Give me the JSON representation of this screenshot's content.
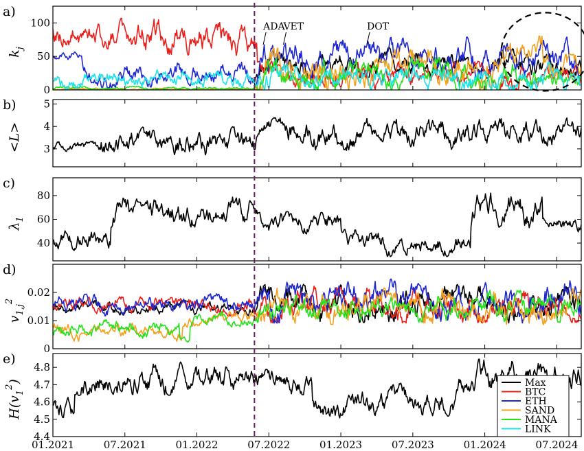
{
  "chart_data": [
    {
      "panel": "a)",
      "type": "line",
      "ylabel": "k_j",
      "ylabel_main": "k",
      "ylabel_sub": "j",
      "ylim": [
        0,
        125
      ],
      "yticks": [
        "0",
        "50",
        "100"
      ],
      "ytick_values": [
        0,
        50,
        100
      ],
      "annotations": [
        "ADA",
        "VET",
        "DOT"
      ],
      "annotation_times": [
        2022.48,
        2022.62,
        2023.2
      ],
      "highlight_ellipse": {
        "x_center": 2024.42,
        "y_center": 57
      },
      "series": [
        {
          "name": "Max",
          "color": "#000000",
          "segments": [
            [
              2021.0,
              2022.4,
              0,
              0
            ],
            [
              2022.4,
              2024.67,
              20,
              60
            ]
          ]
        },
        {
          "name": "BTC",
          "color": "#e8201b",
          "segments": [
            [
              2021.0,
              2021.55,
              60,
              105
            ],
            [
              2021.55,
              2022.42,
              55,
              110
            ],
            [
              2022.42,
              2024.67,
              0,
              40
            ]
          ]
        },
        {
          "name": "ETH",
          "color": "#1f27cf",
          "segments": [
            [
              2021.0,
              2021.2,
              45,
              60
            ],
            [
              2021.2,
              2022.42,
              5,
              40
            ],
            [
              2022.42,
              2024.67,
              20,
              75
            ]
          ]
        },
        {
          "name": "SAND",
          "color": "#f2a21e",
          "segments": [
            [
              2021.0,
              2022.42,
              0,
              3
            ],
            [
              2022.42,
              2024.1,
              0,
              60
            ],
            [
              2024.1,
              2024.4,
              40,
              85
            ],
            [
              2024.4,
              2024.67,
              0,
              50
            ]
          ]
        },
        {
          "name": "MANA",
          "color": "#27e01e",
          "segments": [
            [
              2021.0,
              2022.42,
              0,
              5
            ],
            [
              2022.42,
              2024.67,
              0,
              45
            ]
          ]
        },
        {
          "name": "LINK",
          "color": "#1fe2e9",
          "segments": [
            [
              2021.0,
              2022.42,
              0,
              30
            ],
            [
              2022.42,
              2024.67,
              0,
              40
            ]
          ]
        }
      ]
    },
    {
      "panel": "b)",
      "type": "line",
      "ylabel": "<L>",
      "ylim": [
        2.2,
        5.2
      ],
      "yticks": [
        "3",
        "4",
        "5"
      ],
      "ytick_values": [
        3,
        4,
        5
      ],
      "series": [
        {
          "name": "<L>",
          "color": "#000000",
          "segments": [
            [
              2021.0,
              2021.3,
              2.8,
              3.3
            ],
            [
              2021.3,
              2022.42,
              2.6,
              3.9
            ],
            [
              2022.42,
              2022.6,
              3.6,
              4.4
            ],
            [
              2022.6,
              2024.67,
              3.0,
              4.3
            ]
          ]
        }
      ]
    },
    {
      "panel": "c)",
      "type": "line",
      "ylabel": "λ1",
      "ylabel_main": "λ",
      "ylabel_sub": "1",
      "ylim": [
        25,
        95
      ],
      "yticks": [
        "40",
        "60",
        "80"
      ],
      "ytick_values": [
        40,
        60,
        80
      ],
      "series": [
        {
          "name": "λ1",
          "color": "#000000",
          "segments": [
            [
              2021.0,
              2021.4,
              35,
              55
            ],
            [
              2021.4,
              2022.42,
              55,
              80
            ],
            [
              2022.42,
              2023.0,
              45,
              65
            ],
            [
              2023.0,
              2023.9,
              30,
              50
            ],
            [
              2023.9,
              2024.4,
              55,
              85
            ],
            [
              2024.4,
              2024.67,
              45,
              60
            ]
          ]
        }
      ]
    },
    {
      "panel": "d)",
      "type": "line",
      "ylabel": "v1,j^2",
      "ylabel_main": "v",
      "ylabel_sub": "1,j",
      "ylabel_sup": "2",
      "ylim": [
        0.0,
        0.03
      ],
      "yticks": [
        "0",
        "0.01",
        "0.02"
      ],
      "ytick_values": [
        0,
        0.01,
        0.02
      ],
      "series": [
        {
          "name": "Max",
          "color": "#000000",
          "segments": [
            [
              2021.0,
              2022.42,
              0.012,
              0.017
            ],
            [
              2022.42,
              2024.67,
              0.01,
              0.022
            ]
          ]
        },
        {
          "name": "BTC",
          "color": "#e8201b",
          "segments": [
            [
              2021.0,
              2022.42,
              0.012,
              0.018
            ],
            [
              2022.42,
              2024.67,
              0.01,
              0.022
            ]
          ]
        },
        {
          "name": "ETH",
          "color": "#1f27cf",
          "segments": [
            [
              2021.0,
              2022.42,
              0.012,
              0.019
            ],
            [
              2022.42,
              2024.67,
              0.01,
              0.024
            ]
          ]
        },
        {
          "name": "SAND",
          "color": "#f2a21e",
          "segments": [
            [
              2021.0,
              2021.9,
              0.003,
              0.009
            ],
            [
              2021.9,
              2022.42,
              0.008,
              0.013
            ],
            [
              2022.42,
              2024.67,
              0.009,
              0.021
            ]
          ]
        },
        {
          "name": "MANA",
          "color": "#27e01e",
          "segments": [
            [
              2021.0,
              2021.88,
              0.004,
              0.01
            ],
            [
              2021.88,
              2021.95,
              0.001,
              0.004
            ],
            [
              2021.95,
              2022.42,
              0.008,
              0.013
            ],
            [
              2022.42,
              2024.67,
              0.01,
              0.02
            ]
          ]
        }
      ]
    },
    {
      "panel": "e)",
      "type": "line",
      "ylabel": "H(v1^2)",
      "ylabel_main": "H(v",
      "ylabel_sub": "1",
      "ylabel_sup": "2",
      "ylabel_end": ")",
      "ylim": [
        4.4,
        4.88
      ],
      "yticks": [
        "4.4",
        "4.5",
        "4.6",
        "4.7",
        "4.8"
      ],
      "ytick_values": [
        4.4,
        4.5,
        4.6,
        4.7,
        4.8
      ],
      "series": [
        {
          "name": "H(v1^2)",
          "color": "#000000",
          "segments": [
            [
              2021.0,
              2021.15,
              4.48,
              4.62
            ],
            [
              2021.15,
              2022.42,
              4.65,
              4.82
            ],
            [
              2022.42,
              2022.8,
              4.65,
              4.78
            ],
            [
              2022.8,
              2023.0,
              4.45,
              4.6
            ],
            [
              2023.0,
              2023.8,
              4.53,
              4.7
            ],
            [
              2023.8,
              2024.67,
              4.65,
              4.84
            ]
          ]
        }
      ]
    }
  ],
  "x_axis": {
    "range": [
      2021.0,
      2024.67
    ],
    "ticks": [
      "01.2021",
      "07.2021",
      "01.2022",
      "07.2022",
      "01.2023",
      "07.2023",
      "01.2024",
      "07.2024"
    ],
    "tick_values": [
      2021.0,
      2021.5,
      2022.0,
      2022.5,
      2023.0,
      2023.5,
      2024.0,
      2024.5
    ]
  },
  "event_line": {
    "x": 2022.4,
    "color": "#6b1f5e"
  },
  "legend": {
    "placement": "bottom-right of panel e",
    "entries": [
      {
        "label": "Max",
        "color": "#000000"
      },
      {
        "label": "BTC",
        "color": "#e8201b"
      },
      {
        "label": "ETH",
        "color": "#1f27cf"
      },
      {
        "label": "SAND",
        "color": "#f2a21e"
      },
      {
        "label": "MANA",
        "color": "#27e01e"
      },
      {
        "label": "LINK",
        "color": "#1fe2e9"
      }
    ]
  }
}
